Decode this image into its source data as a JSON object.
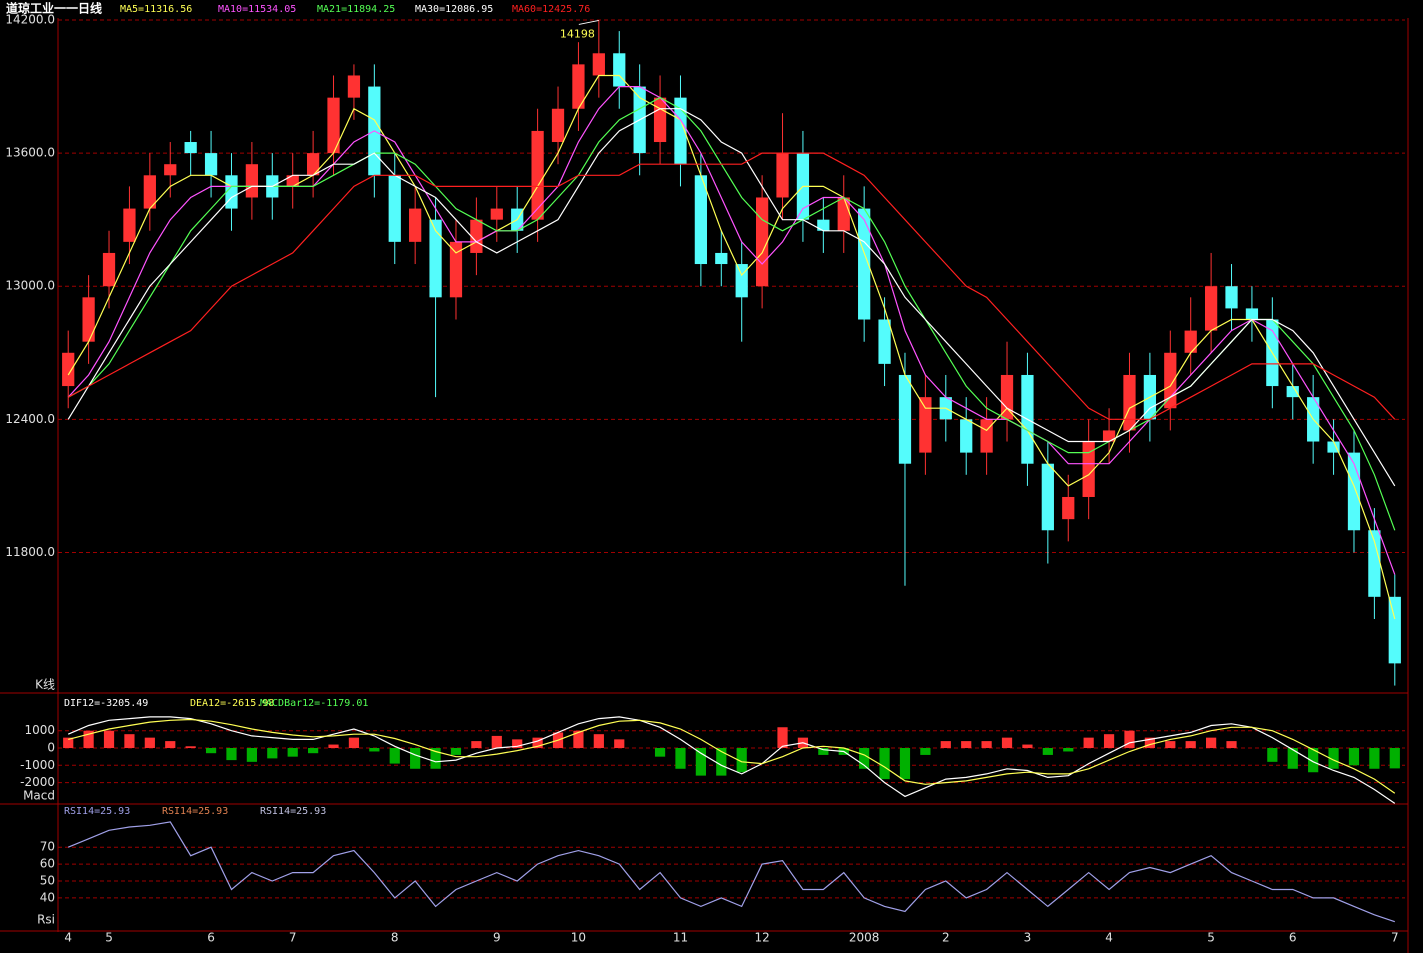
{
  "chart_data": [
    {
      "type": "candlestick",
      "title": "道琼工业一一日线",
      "panel_label": "K线",
      "annotation": "14198",
      "categories": [
        "4",
        null,
        "5",
        null,
        null,
        null,
        null,
        "6",
        null,
        null,
        null,
        "7",
        null,
        null,
        null,
        null,
        "8",
        null,
        null,
        null,
        null,
        "9",
        null,
        null,
        null,
        "10",
        null,
        null,
        null,
        null,
        "11",
        null,
        null,
        null,
        "12",
        null,
        null,
        null,
        null,
        "2008",
        null,
        null,
        null,
        "2",
        null,
        null,
        null,
        "3",
        null,
        null,
        null,
        "4",
        null,
        null,
        null,
        null,
        "5",
        null,
        null,
        null,
        "6",
        null,
        null,
        null,
        null,
        "7"
      ],
      "open": [
        12550,
        12750,
        13000,
        13200,
        13350,
        13500,
        13650,
        13600,
        13500,
        13400,
        13500,
        13450,
        13500,
        13600,
        13850,
        13900,
        13500,
        13200,
        13300,
        12950,
        13150,
        13300,
        13350,
        13300,
        13650,
        13800,
        13950,
        14050,
        13900,
        13650,
        13850,
        13500,
        13150,
        13100,
        13000,
        13400,
        13600,
        13300,
        13250,
        13350,
        12850,
        12600,
        12250,
        12500,
        12400,
        12250,
        12400,
        12600,
        12200,
        11950,
        12050,
        12300,
        12350,
        12600,
        12450,
        12700,
        12800,
        13000,
        12900,
        12850,
        12550,
        12500,
        12300,
        12250,
        11900,
        11600
      ],
      "high": [
        12800,
        13050,
        13250,
        13450,
        13600,
        13650,
        13700,
        13700,
        13600,
        13650,
        13600,
        13600,
        13700,
        13950,
        14000,
        14000,
        13600,
        13450,
        13400,
        13300,
        13400,
        13450,
        13450,
        13800,
        13900,
        14100,
        14198,
        14150,
        14000,
        13950,
        13950,
        13600,
        13250,
        13200,
        13500,
        13780,
        13700,
        13400,
        13500,
        13450,
        12950,
        12700,
        12600,
        12600,
        12500,
        12500,
        12750,
        12700,
        12300,
        12150,
        12400,
        12450,
        12700,
        12700,
        12800,
        12950,
        13150,
        13100,
        13000,
        12950,
        12650,
        12600,
        12400,
        12350,
        12000,
        11700
      ],
      "low": [
        12450,
        12650,
        12900,
        13100,
        13250,
        13400,
        13500,
        13400,
        13250,
        13300,
        13300,
        13350,
        13400,
        13500,
        13750,
        13400,
        13100,
        13100,
        12500,
        12850,
        13050,
        13200,
        13150,
        13200,
        13550,
        13700,
        13850,
        13800,
        13500,
        13550,
        13450,
        13000,
        13000,
        12750,
        12900,
        13300,
        13200,
        13150,
        13150,
        12750,
        12550,
        11650,
        12150,
        12300,
        12150,
        12150,
        12300,
        12100,
        11750,
        11850,
        11950,
        12200,
        12250,
        12300,
        12350,
        12600,
        12700,
        12800,
        12750,
        12450,
        12400,
        12200,
        12150,
        11800,
        11500,
        11200
      ],
      "close": [
        12700,
        12950,
        13150,
        13350,
        13500,
        13550,
        13600,
        13500,
        13350,
        13550,
        13400,
        13500,
        13600,
        13850,
        13950,
        13500,
        13200,
        13350,
        12950,
        13200,
        13300,
        13350,
        13250,
        13700,
        13800,
        14000,
        14050,
        13900,
        13600,
        13850,
        13550,
        13100,
        13100,
        12950,
        13400,
        13600,
        13300,
        13250,
        13400,
        12850,
        12650,
        12200,
        12500,
        12400,
        12250,
        12400,
        12600,
        12200,
        11900,
        12050,
        12300,
        12350,
        12600,
        12400,
        12700,
        12800,
        13000,
        12900,
        12850,
        12550,
        12500,
        12300,
        12250,
        11900,
        11600,
        11300
      ],
      "up_color": "#ff3232",
      "down_color": "#54fcfc",
      "series": [
        {
          "name": "MA5=11316.56",
          "color": "#ffff54",
          "values": [
            12600,
            12750,
            12950,
            13150,
            13350,
            13450,
            13500,
            13500,
            13450,
            13450,
            13450,
            13450,
            13500,
            13600,
            13800,
            13750,
            13600,
            13450,
            13250,
            13150,
            13200,
            13250,
            13300,
            13450,
            13600,
            13800,
            13950,
            13950,
            13850,
            13800,
            13750,
            13500,
            13250,
            13050,
            13150,
            13350,
            13450,
            13450,
            13400,
            13150,
            12900,
            12600,
            12450,
            12450,
            12400,
            12350,
            12450,
            12350,
            12200,
            12100,
            12150,
            12250,
            12450,
            12500,
            12550,
            12700,
            12800,
            12850,
            12850,
            12700,
            12550,
            12400,
            12300,
            12100,
            11850,
            11500
          ]
        },
        {
          "name": "MA10=11534.05",
          "color": "#ff54ff",
          "values": [
            12500,
            12600,
            12750,
            12950,
            13150,
            13300,
            13400,
            13450,
            13450,
            13450,
            13450,
            13450,
            13450,
            13550,
            13650,
            13700,
            13650,
            13500,
            13350,
            13200,
            13200,
            13250,
            13250,
            13350,
            13450,
            13650,
            13800,
            13900,
            13900,
            13850,
            13750,
            13600,
            13400,
            13200,
            13100,
            13200,
            13350,
            13400,
            13400,
            13300,
            13100,
            12800,
            12600,
            12500,
            12450,
            12400,
            12400,
            12350,
            12300,
            12200,
            12200,
            12200,
            12300,
            12400,
            12500,
            12600,
            12700,
            12800,
            12850,
            12800,
            12650,
            12500,
            12350,
            12200,
            11950,
            11700
          ]
        },
        {
          "name": "MA21=11894.25",
          "color": "#54ff54",
          "values": [
            12500,
            12550,
            12650,
            12800,
            12950,
            13100,
            13250,
            13350,
            13450,
            13450,
            13450,
            13450,
            13450,
            13500,
            13550,
            13600,
            13600,
            13550,
            13450,
            13350,
            13300,
            13250,
            13250,
            13300,
            13400,
            13500,
            13650,
            13750,
            13800,
            13850,
            13800,
            13700,
            13550,
            13400,
            13300,
            13250,
            13300,
            13350,
            13400,
            13350,
            13200,
            13000,
            12850,
            12700,
            12550,
            12450,
            12400,
            12350,
            12300,
            12250,
            12250,
            12300,
            12350,
            12400,
            12500,
            12550,
            12650,
            12750,
            12850,
            12850,
            12750,
            12650,
            12500,
            12350,
            12150,
            11900
          ]
        },
        {
          "name": "MA30=12086.95",
          "color": "#ffffff",
          "values": [
            12400,
            12550,
            12700,
            12850,
            13000,
            13100,
            13200,
            13300,
            13400,
            13450,
            13450,
            13500,
            13500,
            13550,
            13550,
            13600,
            13500,
            13450,
            13400,
            13300,
            13200,
            13150,
            13200,
            13250,
            13300,
            13450,
            13600,
            13700,
            13750,
            13800,
            13800,
            13750,
            13650,
            13600,
            13450,
            13300,
            13300,
            13250,
            13250,
            13200,
            13100,
            12950,
            12850,
            12750,
            12650,
            12550,
            12450,
            12400,
            12350,
            12300,
            12300,
            12300,
            12350,
            12450,
            12500,
            12550,
            12650,
            12750,
            12850,
            12850,
            12800,
            12700,
            12550,
            12400,
            12250,
            12100
          ]
        },
        {
          "name": "MA60=12425.76",
          "color": "#ff2020",
          "values": [
            12500,
            12550,
            12600,
            12650,
            12700,
            12750,
            12800,
            12900,
            13000,
            13050,
            13100,
            13150,
            13250,
            13350,
            13450,
            13500,
            13500,
            13500,
            13450,
            13450,
            13450,
            13450,
            13450,
            13450,
            13450,
            13500,
            13500,
            13500,
            13550,
            13550,
            13550,
            13550,
            13550,
            13550,
            13600,
            13600,
            13600,
            13600,
            13550,
            13500,
            13400,
            13300,
            13200,
            13100,
            13000,
            12950,
            12850,
            12750,
            12650,
            12550,
            12450,
            12400,
            12400,
            12400,
            12450,
            12500,
            12550,
            12600,
            12650,
            12650,
            12650,
            12650,
            12600,
            12550,
            12500,
            12400
          ]
        }
      ],
      "ylim": [
        11180,
        14200
      ],
      "yticks": [
        {
          "value": 14200,
          "label": "14200.0"
        },
        {
          "value": 13600,
          "label": "13600.0"
        },
        {
          "value": 13000,
          "label": "13000.0"
        },
        {
          "value": 12400,
          "label": "12400.0"
        },
        {
          "value": 11800,
          "label": "11800.0"
        }
      ],
      "grid": true
    },
    {
      "type": "macd",
      "panel_label": "Macd",
      "series": [
        {
          "name": "DIF12=-3205.49",
          "color": "#ffffff",
          "values": [
            800,
            1300,
            1600,
            1700,
            1800,
            1800,
            1700,
            1400,
            1000,
            700,
            600,
            500,
            500,
            800,
            1100,
            700,
            100,
            -400,
            -800,
            -700,
            -300,
            0,
            100,
            400,
            900,
            1400,
            1700,
            1800,
            1600,
            1200,
            500,
            -300,
            -1000,
            -1500,
            -900,
            100,
            300,
            -100,
            -200,
            -1000,
            -2000,
            -2800,
            -2300,
            -1800,
            -1700,
            -1500,
            -1200,
            -1300,
            -1700,
            -1600,
            -900,
            -300,
            300,
            500,
            700,
            900,
            1300,
            1400,
            1200,
            600,
            -100,
            -800,
            -1300,
            -1700,
            -2400,
            -3205.49
          ]
        },
        {
          "name": "DEA12=-2615.98",
          "color": "#ffff54",
          "values": [
            500,
            800,
            1100,
            1300,
            1500,
            1600,
            1650,
            1550,
            1350,
            1100,
            900,
            750,
            650,
            700,
            800,
            800,
            550,
            200,
            -200,
            -500,
            -500,
            -350,
            -150,
            100,
            450,
            900,
            1300,
            1550,
            1600,
            1450,
            1100,
            500,
            -200,
            -800,
            -900,
            -500,
            0,
            100,
            0,
            -400,
            -1100,
            -1900,
            -2100,
            -2000,
            -1900,
            -1700,
            -1500,
            -1400,
            -1500,
            -1500,
            -1200,
            -700,
            -200,
            200,
            500,
            700,
            1000,
            1200,
            1200,
            1000,
            500,
            -100,
            -700,
            -1200,
            -1800,
            -2615.98
          ]
        },
        {
          "name": "MACDBar12=-1179.01",
          "color": "#54ff54",
          "bar": true,
          "values": [
            600,
            1000,
            1000,
            800,
            600,
            400,
            100,
            -300,
            -700,
            -800,
            -600,
            -500,
            -300,
            200,
            600,
            -200,
            -900,
            -1200,
            -1200,
            -400,
            400,
            700,
            500,
            600,
            900,
            1000,
            800,
            500,
            0,
            -500,
            -1200,
            -1600,
            -1600,
            -1400,
            0,
            1200,
            600,
            -400,
            -400,
            -1200,
            -1800,
            -1800,
            -400,
            400,
            400,
            400,
            600,
            200,
            -400,
            -200,
            600,
            800,
            1000,
            600,
            400,
            400,
            600,
            400,
            0,
            -800,
            -1200,
            -1400,
            -1200,
            -1000,
            -1200,
            -1179.01
          ]
        }
      ],
      "up_color": "#ff3232",
      "down_color": "#00b000",
      "ylim": [
        -3180,
        2950
      ],
      "yticks": [
        1000,
        0,
        -1000,
        -2000
      ],
      "grid": true
    },
    {
      "type": "line",
      "panel_label": "Rsi",
      "series": [
        {
          "name": "RSI14=25.93",
          "color": "#a0a0e8",
          "values": [
            70,
            75,
            80,
            82,
            83,
            85,
            65,
            70,
            45,
            55,
            50,
            55,
            55,
            65,
            68,
            55,
            40,
            50,
            35,
            45,
            50,
            55,
            50,
            60,
            65,
            68,
            65,
            60,
            45,
            55,
            40,
            35,
            40,
            35,
            60,
            62,
            45,
            45,
            55,
            40,
            35,
            32,
            45,
            50,
            40,
            45,
            55,
            45,
            35,
            45,
            55,
            45,
            55,
            58,
            55,
            60,
            65,
            55,
            50,
            45,
            45,
            40,
            40,
            35,
            30,
            25.93
          ]
        }
      ],
      "legend_extra": [
        {
          "text": "RSI14=25.93",
          "color": "#e08050"
        },
        {
          "text": "RSI14=25.93",
          "color": "#c0c0e0"
        }
      ],
      "ylim": [
        21,
        95
      ],
      "yticks": [
        70,
        60,
        50,
        40
      ],
      "grid": true
    }
  ]
}
